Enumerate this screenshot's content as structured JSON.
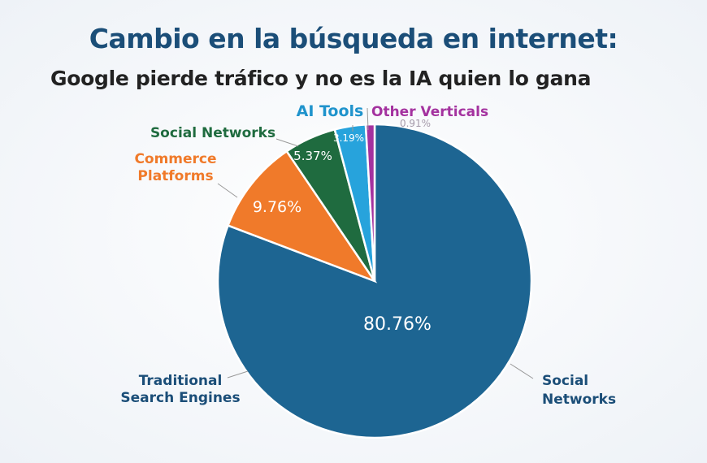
{
  "title": "Cambio en la búsqueda en internet:",
  "subtitle": "Google pierde tráfico y no es la IA quien lo gana",
  "chart_data": {
    "type": "pie",
    "title": "Cambio en la búsqueda en internet:",
    "subtitle": "Google pierde tráfico y no es la IA quien lo gana",
    "slices": [
      {
        "label": "Traditional Search Engines",
        "value": 80.76,
        "value_label": "80.76%",
        "color": "#1d6592",
        "label_color": "#1b4e78"
      },
      {
        "label": "Commerce Platforms",
        "value": 9.76,
        "value_label": "9.76%",
        "color": "#f07a2a",
        "label_color": "#f07a2a"
      },
      {
        "label": "Social Networks",
        "value": 5.37,
        "value_label": "5.37%",
        "color": "#1f6b3f",
        "label_color": "#1f6b3f"
      },
      {
        "label": "AI Tools",
        "value": 3.19,
        "value_label": "3.19%",
        "color": "#27a3dc",
        "label_color": "#1f93cc"
      },
      {
        "label": "Other Verticals",
        "value": 0.91,
        "value_label": "0.91%",
        "color": "#a4329f",
        "label_color": "#a4329f"
      }
    ],
    "extra_labels": [
      "Social Networks"
    ],
    "start": "top",
    "direction": "clockwise"
  }
}
